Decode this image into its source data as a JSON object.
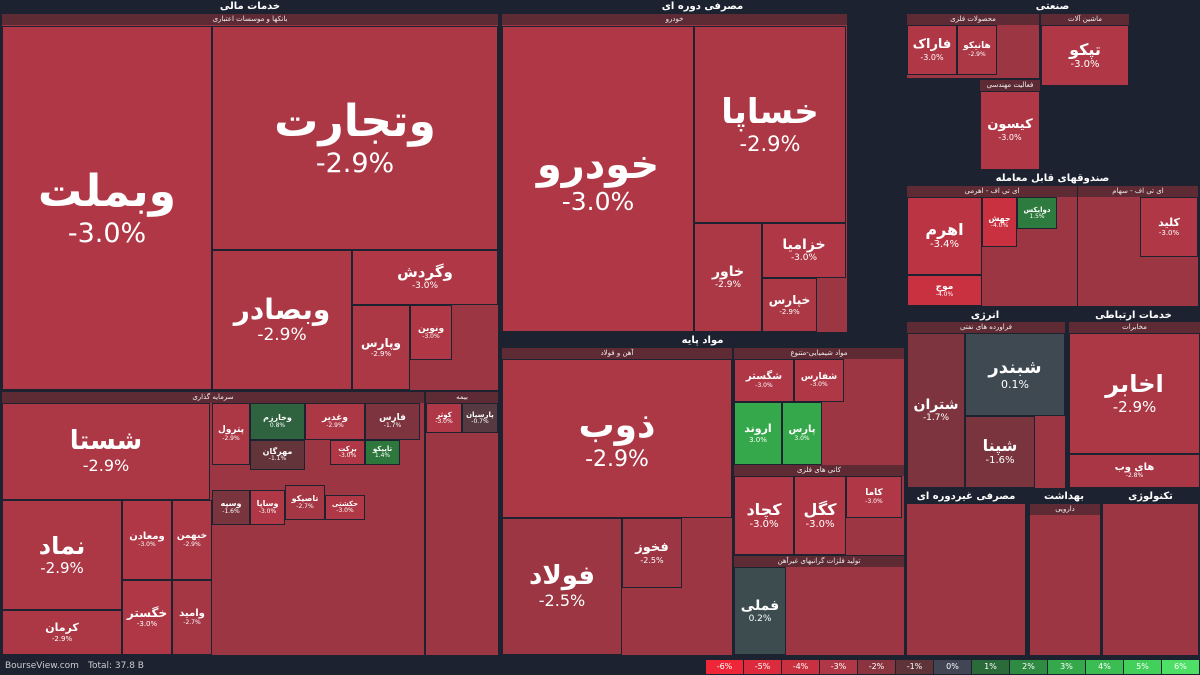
{
  "chart_data": {
    "type": "treemap",
    "sectors": [
      {
        "name": "خدمات مالی",
        "subgroups": [
          {
            "name": "بانکها و موسسات اعتباری",
            "items": [
              {
                "label": "وبملت",
                "value": -3.0,
                "value_label": "-3.0%"
              },
              {
                "label": "وتجارت",
                "value": -2.9,
                "value_label": "-2.9%"
              },
              {
                "label": "وبصادر",
                "value": -2.9,
                "value_label": "-2.9%"
              },
              {
                "label": "وگردش",
                "value": -3.0,
                "value_label": "-3.0%"
              },
              {
                "label": "وپارس",
                "value": -2.9,
                "value_label": "-2.9%"
              },
              {
                "label": "ونوین",
                "value": -3.0,
                "value_label": "-3.0%"
              }
            ]
          },
          {
            "name": "سرمایه گذاری",
            "items": [
              {
                "label": "شستا",
                "value": -2.9,
                "value_label": "-2.9%"
              },
              {
                "label": "نماد",
                "value": -2.9,
                "value_label": "-2.9%"
              },
              {
                "label": "کرمان",
                "value": -2.9,
                "value_label": "-2.9%"
              },
              {
                "label": "ومعادن",
                "value": -3.0,
                "value_label": "-3.0%"
              },
              {
                "label": "خگستر",
                "value": -3.0,
                "value_label": "-3.0%"
              },
              {
                "label": "خبهمن",
                "value": -2.9,
                "value_label": "-2.9%"
              },
              {
                "label": "وامید",
                "value": -2.7,
                "value_label": "-2.7%"
              },
              {
                "label": "پترول",
                "value": -2.9,
                "value_label": "-2.9%"
              },
              {
                "label": "وخارزم",
                "value": 0.8,
                "value_label": "0.8%"
              },
              {
                "label": "مهرگان",
                "value": -1.1,
                "value_label": "-1.1%"
              },
              {
                "label": "وغدیر",
                "value": -2.9,
                "value_label": "-2.9%"
              },
              {
                "label": "فارس",
                "value": -1.7,
                "value_label": "-1.7%"
              },
              {
                "label": "برکت",
                "value": -3.0,
                "value_label": "-3.0%"
              },
              {
                "label": "تاپیکو",
                "value": 1.4,
                "value_label": "1.4%"
              },
              {
                "label": "وسپه",
                "value": -1.6,
                "value_label": "-1.6%"
              },
              {
                "label": "وساپا",
                "value": -3.0,
                "value_label": "-3.0%"
              },
              {
                "label": "تاصیکو",
                "value": -2.7,
                "value_label": "-2.7%"
              },
              {
                "label": "حکشتی",
                "value": -3.0,
                "value_label": "-3.0%"
              }
            ]
          },
          {
            "name": "بیمه",
            "items": [
              {
                "label": "کوثر",
                "value": -3.0,
                "value_label": "-3.0%"
              },
              {
                "label": "پارسیان",
                "value": -0.7,
                "value_label": "-0.7%"
              }
            ]
          }
        ]
      },
      {
        "name": "مصرفی دوره ای",
        "subgroups": [
          {
            "name": "خودرو",
            "items": [
              {
                "label": "خودرو",
                "value": -3.0,
                "value_label": "-3.0%"
              },
              {
                "label": "خساپا",
                "value": -2.9,
                "value_label": "-2.9%"
              },
              {
                "label": "خزامیا",
                "value": -3.0,
                "value_label": "-3.0%"
              },
              {
                "label": "خاور",
                "value": -2.9,
                "value_label": "-2.9%"
              },
              {
                "label": "خپارس",
                "value": -2.9,
                "value_label": "-2.9%"
              }
            ]
          }
        ]
      },
      {
        "name": "مواد پایه",
        "subgroups": [
          {
            "name": "آهن و فولاد",
            "items": [
              {
                "label": "ذوب",
                "value": -2.9,
                "value_label": "-2.9%"
              },
              {
                "label": "فولاد",
                "value": -2.5,
                "value_label": "-2.5%"
              },
              {
                "label": "فخوز",
                "value": -2.5,
                "value_label": "-2.5%"
              }
            ]
          },
          {
            "name": "مواد شیمیایی-متنوع",
            "items": [
              {
                "label": "شگستر",
                "value": -3.0,
                "value_label": "-3.0%"
              },
              {
                "label": "شفارس",
                "value": -3.0,
                "value_label": "-3.0%"
              },
              {
                "label": "اروند",
                "value": 3.0,
                "value_label": "3.0%"
              },
              {
                "label": "پارس",
                "value": 3.0,
                "value_label": "3.0%"
              }
            ]
          },
          {
            "name": "کانی های فلزی",
            "items": [
              {
                "label": "کچاد",
                "value": -3.0,
                "value_label": "-3.0%"
              },
              {
                "label": "کگل",
                "value": -3.0,
                "value_label": "-3.0%"
              },
              {
                "label": "کاما",
                "value": -3.0,
                "value_label": "-3.0%"
              }
            ]
          },
          {
            "name": "تولید فلزات گرانبهای غیرآهن",
            "items": [
              {
                "label": "فملی",
                "value": 0.2,
                "value_label": "0.2%"
              }
            ]
          }
        ]
      },
      {
        "name": "صنعتی",
        "subgroups": [
          {
            "name": "محصولات فلزی",
            "items": [
              {
                "label": "فاراک",
                "value": -3.0,
                "value_label": "-3.0%"
              },
              {
                "label": "هانیکو",
                "value": -2.9,
                "value_label": "-2.9%"
              }
            ]
          },
          {
            "name": "ماشین آلات",
            "items": [
              {
                "label": "تپکو",
                "value": -3.0,
                "value_label": "-3.0%"
              }
            ]
          },
          {
            "name": "فعالیت مهندسی",
            "items": [
              {
                "label": "کیسون",
                "value": -3.0,
                "value_label": "-3.0%"
              }
            ]
          }
        ]
      },
      {
        "name": "صندوقهای قابل معامله",
        "subgroups": [
          {
            "name": "ای تی اف - اهرمی",
            "items": [
              {
                "label": "اهرم",
                "value": -3.4,
                "value_label": "-3.4%"
              },
              {
                "label": "موج",
                "value": -4.0,
                "value_label": "-4.0%"
              },
              {
                "label": "جهش",
                "value": -4.0,
                "value_label": "-4.0%"
              },
              {
                "label": "دوایکس",
                "value": 1.5,
                "value_label": "1.5%"
              }
            ]
          },
          {
            "name": "ای تی اف - سهام",
            "items": [
              {
                "label": "کلید",
                "value": -3.0,
                "value_label": "-3.0%"
              }
            ]
          }
        ]
      },
      {
        "name": "انرژی",
        "subgroups": [
          {
            "name": "فراورده های نفتی",
            "items": [
              {
                "label": "شبندر",
                "value": 0.1,
                "value_label": "0.1%"
              },
              {
                "label": "شتران",
                "value": -1.7,
                "value_label": "-1.7%"
              },
              {
                "label": "شپنا",
                "value": -1.6,
                "value_label": "-1.6%"
              }
            ]
          }
        ]
      },
      {
        "name": "خدمات ارتباطی",
        "subgroups": [
          {
            "name": "مخابرات",
            "items": [
              {
                "label": "اخابر",
                "value": -2.9,
                "value_label": "-2.9%"
              },
              {
                "label": "های وب",
                "value": -2.8,
                "value_label": "-2.8%"
              }
            ]
          }
        ]
      },
      {
        "name": "مصرفی غیردوره ای",
        "subgroups": []
      },
      {
        "name": "بهداشت",
        "subgroups": [
          {
            "name": "دارویی",
            "items": []
          }
        ]
      },
      {
        "name": "تکنولوژی",
        "subgroups": []
      }
    ],
    "legend": [
      {
        "value": -6,
        "label": "-6%",
        "color": "#ee2637"
      },
      {
        "value": -5,
        "label": "-5%",
        "color": "#dc2b3c"
      },
      {
        "value": -4,
        "label": "-4%",
        "color": "#c93040"
      },
      {
        "value": -3,
        "label": "-3%",
        "color": "#b03745"
      },
      {
        "value": -2,
        "label": "-2%",
        "color": "#8a3440"
      },
      {
        "value": -1,
        "label": "-1%",
        "color": "#5f3439"
      },
      {
        "value": 0,
        "label": "0%",
        "color": "#414554"
      },
      {
        "value": 1,
        "label": "1%",
        "color": "#2b6b3a"
      },
      {
        "value": 2,
        "label": "2%",
        "color": "#2f8a42"
      },
      {
        "value": 3,
        "label": "3%",
        "color": "#35a84b"
      },
      {
        "value": 4,
        "label": "4%",
        "color": "#3bbd53"
      },
      {
        "value": 5,
        "label": "5%",
        "color": "#42d05b"
      },
      {
        "value": 6,
        "label": "6%",
        "color": "#4ee066"
      }
    ],
    "source": "BourseView.com",
    "total": "Total: 37.8 B"
  }
}
